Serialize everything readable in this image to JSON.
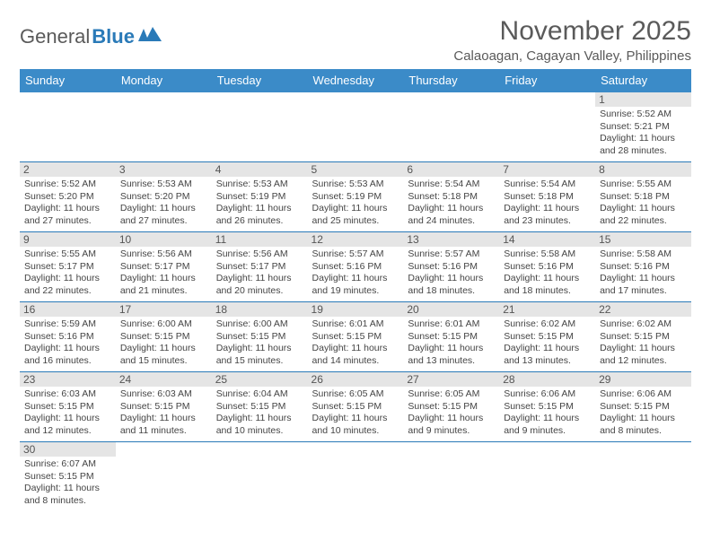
{
  "logo": {
    "text_a": "General",
    "text_b": "Blue"
  },
  "title": "November 2025",
  "location": "Calaoagan, Cagayan Valley, Philippines",
  "colors": {
    "header_bg": "#3b8bc8",
    "header_text": "#ffffff",
    "border": "#2a7ab8",
    "daynum_bg": "#e5e5e5",
    "body_text": "#444444",
    "title_text": "#5a5a5a"
  },
  "days_of_week": [
    "Sunday",
    "Monday",
    "Tuesday",
    "Wednesday",
    "Thursday",
    "Friday",
    "Saturday"
  ],
  "weeks": [
    [
      null,
      null,
      null,
      null,
      null,
      null,
      {
        "n": "1",
        "sr": "5:52 AM",
        "ss": "5:21 PM",
        "dl": "11 hours and 28 minutes."
      }
    ],
    [
      {
        "n": "2",
        "sr": "5:52 AM",
        "ss": "5:20 PM",
        "dl": "11 hours and 27 minutes."
      },
      {
        "n": "3",
        "sr": "5:53 AM",
        "ss": "5:20 PM",
        "dl": "11 hours and 27 minutes."
      },
      {
        "n": "4",
        "sr": "5:53 AM",
        "ss": "5:19 PM",
        "dl": "11 hours and 26 minutes."
      },
      {
        "n": "5",
        "sr": "5:53 AM",
        "ss": "5:19 PM",
        "dl": "11 hours and 25 minutes."
      },
      {
        "n": "6",
        "sr": "5:54 AM",
        "ss": "5:18 PM",
        "dl": "11 hours and 24 minutes."
      },
      {
        "n": "7",
        "sr": "5:54 AM",
        "ss": "5:18 PM",
        "dl": "11 hours and 23 minutes."
      },
      {
        "n": "8",
        "sr": "5:55 AM",
        "ss": "5:18 PM",
        "dl": "11 hours and 22 minutes."
      }
    ],
    [
      {
        "n": "9",
        "sr": "5:55 AM",
        "ss": "5:17 PM",
        "dl": "11 hours and 22 minutes."
      },
      {
        "n": "10",
        "sr": "5:56 AM",
        "ss": "5:17 PM",
        "dl": "11 hours and 21 minutes."
      },
      {
        "n": "11",
        "sr": "5:56 AM",
        "ss": "5:17 PM",
        "dl": "11 hours and 20 minutes."
      },
      {
        "n": "12",
        "sr": "5:57 AM",
        "ss": "5:16 PM",
        "dl": "11 hours and 19 minutes."
      },
      {
        "n": "13",
        "sr": "5:57 AM",
        "ss": "5:16 PM",
        "dl": "11 hours and 18 minutes."
      },
      {
        "n": "14",
        "sr": "5:58 AM",
        "ss": "5:16 PM",
        "dl": "11 hours and 18 minutes."
      },
      {
        "n": "15",
        "sr": "5:58 AM",
        "ss": "5:16 PM",
        "dl": "11 hours and 17 minutes."
      }
    ],
    [
      {
        "n": "16",
        "sr": "5:59 AM",
        "ss": "5:16 PM",
        "dl": "11 hours and 16 minutes."
      },
      {
        "n": "17",
        "sr": "6:00 AM",
        "ss": "5:15 PM",
        "dl": "11 hours and 15 minutes."
      },
      {
        "n": "18",
        "sr": "6:00 AM",
        "ss": "5:15 PM",
        "dl": "11 hours and 15 minutes."
      },
      {
        "n": "19",
        "sr": "6:01 AM",
        "ss": "5:15 PM",
        "dl": "11 hours and 14 minutes."
      },
      {
        "n": "20",
        "sr": "6:01 AM",
        "ss": "5:15 PM",
        "dl": "11 hours and 13 minutes."
      },
      {
        "n": "21",
        "sr": "6:02 AM",
        "ss": "5:15 PM",
        "dl": "11 hours and 13 minutes."
      },
      {
        "n": "22",
        "sr": "6:02 AM",
        "ss": "5:15 PM",
        "dl": "11 hours and 12 minutes."
      }
    ],
    [
      {
        "n": "23",
        "sr": "6:03 AM",
        "ss": "5:15 PM",
        "dl": "11 hours and 12 minutes."
      },
      {
        "n": "24",
        "sr": "6:03 AM",
        "ss": "5:15 PM",
        "dl": "11 hours and 11 minutes."
      },
      {
        "n": "25",
        "sr": "6:04 AM",
        "ss": "5:15 PM",
        "dl": "11 hours and 10 minutes."
      },
      {
        "n": "26",
        "sr": "6:05 AM",
        "ss": "5:15 PM",
        "dl": "11 hours and 10 minutes."
      },
      {
        "n": "27",
        "sr": "6:05 AM",
        "ss": "5:15 PM",
        "dl": "11 hours and 9 minutes."
      },
      {
        "n": "28",
        "sr": "6:06 AM",
        "ss": "5:15 PM",
        "dl": "11 hours and 9 minutes."
      },
      {
        "n": "29",
        "sr": "6:06 AM",
        "ss": "5:15 PM",
        "dl": "11 hours and 8 minutes."
      }
    ],
    [
      {
        "n": "30",
        "sr": "6:07 AM",
        "ss": "5:15 PM",
        "dl": "11 hours and 8 minutes."
      },
      null,
      null,
      null,
      null,
      null,
      null
    ]
  ],
  "labels": {
    "sunrise": "Sunrise: ",
    "sunset": "Sunset: ",
    "daylight": "Daylight: "
  }
}
